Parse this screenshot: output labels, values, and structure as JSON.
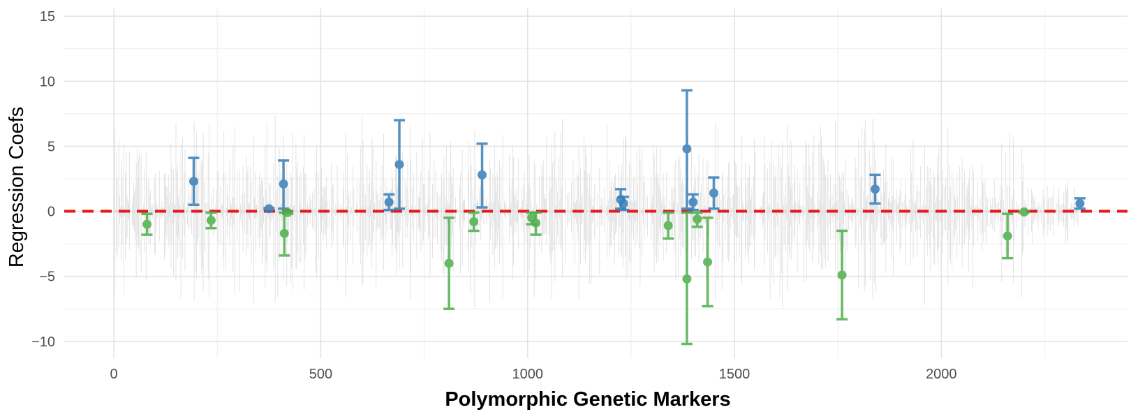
{
  "chart_data": {
    "type": "scatter",
    "title": "",
    "xlabel": "Polymorphic Genetic Markers",
    "ylabel": "Regression Coefs",
    "xlim": [
      -120,
      2450
    ],
    "ylim": [
      -11.3,
      15.6
    ],
    "x_ticks": [
      0,
      500,
      1000,
      1500,
      2000
    ],
    "y_ticks": [
      -10,
      -5,
      0,
      5,
      10,
      15
    ],
    "x_tick_labels": [
      "0",
      "500",
      "1000",
      "1500",
      "2000"
    ],
    "y_tick_labels": [
      "−10",
      "−5",
      "0",
      "5",
      "10",
      "15"
    ],
    "grid": true,
    "legend": "none",
    "background_noise": {
      "x_range": [
        0,
        2330
      ],
      "amplitude": 8,
      "color": "#d9d9d9"
    },
    "reference_line": {
      "y": 0,
      "color": "#e41a1c",
      "style": "dashed"
    },
    "colors": {
      "positive": "#377eb8",
      "negative": "#4daf4a"
    },
    "series": [
      {
        "color": "#377eb8",
        "points": [
          {
            "x": 193,
            "y": 2.3,
            "lo": 0.5,
            "hi": 4.1
          },
          {
            "x": 375,
            "y": 0.2,
            "lo": 0.15,
            "hi": 0.25
          },
          {
            "x": 410,
            "y": 2.1,
            "lo": 0.2,
            "hi": 3.9
          },
          {
            "x": 665,
            "y": 0.7,
            "lo": 0.1,
            "hi": 1.3
          },
          {
            "x": 690,
            "y": 3.6,
            "lo": 0.2,
            "hi": 7.0
          },
          {
            "x": 890,
            "y": 2.8,
            "lo": 0.3,
            "hi": 5.2
          },
          {
            "x": 1225,
            "y": 0.9,
            "lo": 0.2,
            "hi": 1.7
          },
          {
            "x": 1232,
            "y": 0.6,
            "lo": 0.1,
            "hi": 1.1
          },
          {
            "x": 1385,
            "y": 4.8,
            "lo": 0.2,
            "hi": 9.3
          },
          {
            "x": 1400,
            "y": 0.7,
            "lo": 0.1,
            "hi": 1.3
          },
          {
            "x": 1450,
            "y": 1.4,
            "lo": 0.2,
            "hi": 2.6
          },
          {
            "x": 1840,
            "y": 1.7,
            "lo": 0.6,
            "hi": 2.8
          },
          {
            "x": 2335,
            "y": 0.6,
            "lo": 0.2,
            "hi": 1.0
          }
        ]
      },
      {
        "color": "#4daf4a",
        "points": [
          {
            "x": 80,
            "y": -1.0,
            "lo": -1.8,
            "hi": -0.2
          },
          {
            "x": 235,
            "y": -0.7,
            "lo": -1.3,
            "hi": -0.1
          },
          {
            "x": 412,
            "y": -1.7,
            "lo": -3.4,
            "hi": -0.1
          },
          {
            "x": 420,
            "y": -0.1,
            "lo": -0.2,
            "hi": 0.0
          },
          {
            "x": 810,
            "y": -4.0,
            "lo": -7.5,
            "hi": -0.5
          },
          {
            "x": 870,
            "y": -0.8,
            "lo": -1.5,
            "hi": -0.1
          },
          {
            "x": 1010,
            "y": -0.5,
            "lo": -1.0,
            "hi": -0.1
          },
          {
            "x": 1020,
            "y": -0.9,
            "lo": -1.8,
            "hi": -0.1
          },
          {
            "x": 1340,
            "y": -1.1,
            "lo": -2.1,
            "hi": -0.1
          },
          {
            "x": 1385,
            "y": -5.2,
            "lo": -10.2,
            "hi": -0.1
          },
          {
            "x": 1410,
            "y": -0.6,
            "lo": -1.2,
            "hi": -0.1
          },
          {
            "x": 1435,
            "y": -3.9,
            "lo": -7.3,
            "hi": -0.5
          },
          {
            "x": 1760,
            "y": -4.9,
            "lo": -8.3,
            "hi": -1.5
          },
          {
            "x": 2160,
            "y": -1.9,
            "lo": -3.6,
            "hi": -0.2
          },
          {
            "x": 2200,
            "y": -0.05,
            "lo": -0.1,
            "hi": 0.0
          }
        ]
      }
    ]
  }
}
